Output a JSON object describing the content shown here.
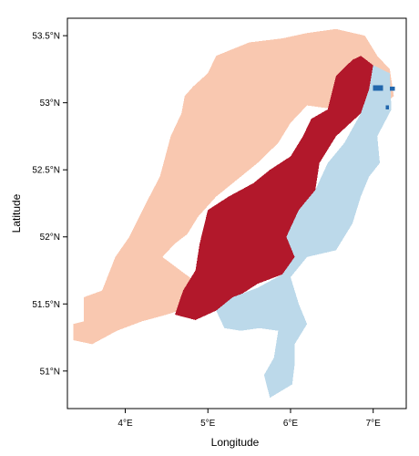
{
  "chart_data": {
    "type": "raster-map",
    "region": "Netherlands",
    "xlabel": "Longitude",
    "ylabel": "Latitude",
    "xlim": [
      3.3,
      7.4
    ],
    "ylim": [
      50.72,
      53.63
    ],
    "x_ticks": [
      {
        "value": 4,
        "label": "4°E"
      },
      {
        "value": 5,
        "label": "5°E"
      },
      {
        "value": 6,
        "label": "6°E"
      },
      {
        "value": 7,
        "label": "7°E"
      }
    ],
    "y_ticks": [
      {
        "value": 51,
        "label": "51°N"
      },
      {
        "value": 51.5,
        "label": "51.5°N"
      },
      {
        "value": 52,
        "label": "52°N"
      },
      {
        "value": 52.5,
        "label": "52.5°N"
      },
      {
        "value": 53,
        "label": "53°N"
      },
      {
        "value": 53.5,
        "label": "53.5°N"
      }
    ],
    "grid": false,
    "legend": "none",
    "classes": [
      {
        "id": "light-red",
        "color": "#f9c8b0"
      },
      {
        "id": "dark-red",
        "color": "#b2182b"
      },
      {
        "id": "light-blue",
        "color": "#bcd9ea"
      },
      {
        "id": "dark-blue",
        "color": "#2166ac"
      }
    ],
    "zones": [
      {
        "class": "light-red",
        "outline": [
          [
            3.37,
            51.23
          ],
          [
            3.37,
            51.35
          ],
          [
            3.5,
            51.37
          ],
          [
            3.5,
            51.55
          ],
          [
            3.72,
            51.6
          ],
          [
            3.88,
            51.85
          ],
          [
            4.05,
            52.0
          ],
          [
            4.25,
            52.25
          ],
          [
            4.42,
            52.45
          ],
          [
            4.55,
            52.75
          ],
          [
            4.68,
            52.92
          ],
          [
            4.72,
            53.05
          ],
          [
            4.82,
            53.12
          ],
          [
            5.0,
            53.22
          ],
          [
            5.1,
            53.35
          ],
          [
            5.5,
            53.45
          ],
          [
            5.9,
            53.48
          ],
          [
            6.2,
            53.52
          ],
          [
            6.55,
            53.55
          ],
          [
            6.9,
            53.5
          ],
          [
            7.05,
            53.35
          ],
          [
            7.2,
            53.25
          ],
          [
            7.25,
            53.05
          ],
          [
            6.95,
            52.9
          ],
          [
            6.55,
            52.95
          ],
          [
            6.2,
            52.98
          ],
          [
            6.0,
            52.85
          ],
          [
            5.85,
            52.7
          ],
          [
            5.6,
            52.55
          ],
          [
            5.4,
            52.45
          ],
          [
            5.1,
            52.3
          ],
          [
            4.88,
            52.15
          ],
          [
            4.75,
            52.02
          ],
          [
            4.6,
            51.95
          ],
          [
            4.45,
            51.85
          ],
          [
            4.95,
            51.62
          ],
          [
            5.15,
            51.45
          ],
          [
            4.8,
            51.48
          ],
          [
            4.5,
            51.42
          ],
          [
            4.2,
            51.37
          ],
          [
            3.9,
            51.3
          ],
          [
            3.6,
            51.2
          ]
        ]
      },
      {
        "class": "dark-red",
        "outline": [
          [
            4.6,
            51.42
          ],
          [
            4.7,
            51.6
          ],
          [
            4.85,
            51.75
          ],
          [
            4.9,
            51.95
          ],
          [
            5.0,
            52.2
          ],
          [
            5.25,
            52.3
          ],
          [
            5.55,
            52.4
          ],
          [
            5.75,
            52.5
          ],
          [
            6.0,
            52.6
          ],
          [
            6.15,
            52.75
          ],
          [
            6.25,
            52.88
          ],
          [
            6.45,
            52.95
          ],
          [
            6.55,
            53.2
          ],
          [
            6.75,
            53.32
          ],
          [
            6.85,
            53.35
          ],
          [
            7.0,
            53.28
          ],
          [
            6.95,
            53.1
          ],
          [
            6.85,
            52.92
          ],
          [
            6.55,
            52.75
          ],
          [
            6.35,
            52.55
          ],
          [
            6.3,
            52.35
          ],
          [
            6.1,
            52.2
          ],
          [
            5.95,
            52.0
          ],
          [
            6.05,
            51.85
          ],
          [
            5.9,
            51.72
          ],
          [
            5.6,
            51.65
          ],
          [
            5.35,
            51.55
          ],
          [
            5.1,
            51.45
          ],
          [
            4.85,
            51.38
          ]
        ]
      },
      {
        "class": "light-blue",
        "outline": [
          [
            5.1,
            51.45
          ],
          [
            5.3,
            51.55
          ],
          [
            5.6,
            51.62
          ],
          [
            5.9,
            51.72
          ],
          [
            6.05,
            51.85
          ],
          [
            5.95,
            52.0
          ],
          [
            6.1,
            52.2
          ],
          [
            6.3,
            52.35
          ],
          [
            6.45,
            52.55
          ],
          [
            6.65,
            52.7
          ],
          [
            6.85,
            52.92
          ],
          [
            6.95,
            53.1
          ],
          [
            7.0,
            53.28
          ],
          [
            7.2,
            53.22
          ],
          [
            7.22,
            52.95
          ],
          [
            7.05,
            52.75
          ],
          [
            7.08,
            52.55
          ],
          [
            6.95,
            52.45
          ],
          [
            6.85,
            52.3
          ],
          [
            6.75,
            52.1
          ],
          [
            6.55,
            51.9
          ],
          [
            6.2,
            51.85
          ],
          [
            6.0,
            51.7
          ],
          [
            6.1,
            51.5
          ],
          [
            6.2,
            51.35
          ],
          [
            6.05,
            51.2
          ],
          [
            6.05,
            51.05
          ],
          [
            6.02,
            50.9
          ],
          [
            5.75,
            50.8
          ],
          [
            5.68,
            50.97
          ],
          [
            5.8,
            51.1
          ],
          [
            5.85,
            51.3
          ],
          [
            5.62,
            51.32
          ],
          [
            5.4,
            51.3
          ],
          [
            5.2,
            51.32
          ]
        ]
      },
      {
        "class": "dark-blue",
        "outline": [
          [
            7.0,
            53.09
          ],
          [
            7.12,
            53.09
          ],
          [
            7.12,
            53.13
          ],
          [
            7.0,
            53.13
          ]
        ]
      },
      {
        "class": "dark-blue",
        "outline": [
          [
            7.2,
            53.09
          ],
          [
            7.26,
            53.09
          ],
          [
            7.26,
            53.12
          ],
          [
            7.2,
            53.12
          ]
        ]
      },
      {
        "class": "dark-blue",
        "outline": [
          [
            7.15,
            52.95
          ],
          [
            7.19,
            52.95
          ],
          [
            7.19,
            52.98
          ],
          [
            7.15,
            52.98
          ]
        ]
      }
    ]
  }
}
